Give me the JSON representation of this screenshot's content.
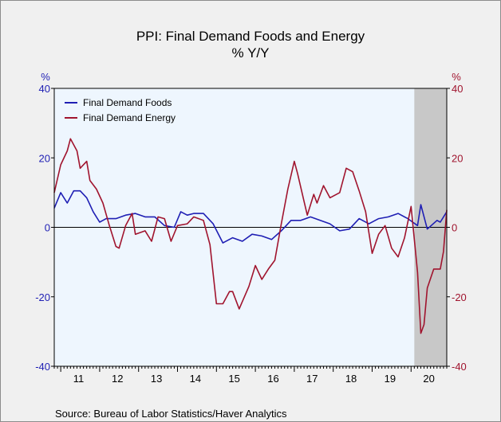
{
  "chart_data": {
    "type": "line",
    "title": "PPI: Final Demand Foods and Energy",
    "subtitle": "% Y/Y",
    "left_unit": "%",
    "right_unit": "%",
    "ylim": [
      -40,
      40
    ],
    "yticks": [
      "40",
      "20",
      "0",
      "-20",
      "-40"
    ],
    "x_range": [
      "2010-11",
      "2020-12"
    ],
    "x_tick_labels": [
      "11",
      "12",
      "13",
      "14",
      "15",
      "16",
      "17",
      "18",
      "19",
      "20"
    ],
    "recession_shading": [
      "2020-02",
      "2020-12"
    ],
    "grid": false,
    "legend_position": "top-left",
    "source": "Source:  Bureau of Labor Statistics/Haver Analytics",
    "colors": {
      "plot_bg": "#eef6fe",
      "recession": "#c8c8c8",
      "foods": "#1f1fb4",
      "energy": "#a0142e"
    },
    "series": [
      {
        "name": "Final Demand Foods",
        "color": "#1f1fb4",
        "points": [
          [
            "2010-11",
            5.5
          ],
          [
            "2011-01",
            10.0
          ],
          [
            "2011-03",
            7.0
          ],
          [
            "2011-05",
            10.5
          ],
          [
            "2011-07",
            10.5
          ],
          [
            "2011-09",
            8.5
          ],
          [
            "2011-11",
            4.5
          ],
          [
            "2012-01",
            1.5
          ],
          [
            "2012-03",
            2.5
          ],
          [
            "2012-06",
            2.5
          ],
          [
            "2012-09",
            3.5
          ],
          [
            "2012-12",
            4.0
          ],
          [
            "2013-03",
            3.0
          ],
          [
            "2013-06",
            3.0
          ],
          [
            "2013-09",
            0.5
          ],
          [
            "2013-12",
            0.0
          ],
          [
            "2014-02",
            4.5
          ],
          [
            "2014-04",
            3.5
          ],
          [
            "2014-06",
            4.0
          ],
          [
            "2014-09",
            4.0
          ],
          [
            "2014-12",
            1.0
          ],
          [
            "2015-03",
            -4.5
          ],
          [
            "2015-06",
            -3.0
          ],
          [
            "2015-09",
            -4.0
          ],
          [
            "2015-12",
            -2.0
          ],
          [
            "2016-03",
            -2.5
          ],
          [
            "2016-06",
            -3.5
          ],
          [
            "2016-09",
            -1.0
          ],
          [
            "2016-12",
            2.0
          ],
          [
            "2017-03",
            2.0
          ],
          [
            "2017-06",
            3.0
          ],
          [
            "2017-09",
            2.0
          ],
          [
            "2017-12",
            1.0
          ],
          [
            "2018-03",
            -1.0
          ],
          [
            "2018-06",
            -0.5
          ],
          [
            "2018-09",
            2.5
          ],
          [
            "2018-12",
            1.0
          ],
          [
            "2019-03",
            2.5
          ],
          [
            "2019-06",
            3.0
          ],
          [
            "2019-09",
            4.0
          ],
          [
            "2019-12",
            2.5
          ],
          [
            "2020-03",
            0.5
          ],
          [
            "2020-04",
            6.5
          ],
          [
            "2020-06",
            -0.5
          ],
          [
            "2020-09",
            2.0
          ],
          [
            "2020-10",
            1.5
          ],
          [
            "2020-12",
            4.5
          ]
        ]
      },
      {
        "name": "Final Demand Energy",
        "color": "#a0142e",
        "points": [
          [
            "2010-11",
            10.0
          ],
          [
            "2011-01",
            18.0
          ],
          [
            "2011-03",
            22.0
          ],
          [
            "2011-04",
            25.5
          ],
          [
            "2011-06",
            22.0
          ],
          [
            "2011-07",
            17.0
          ],
          [
            "2011-09",
            19.0
          ],
          [
            "2011-10",
            13.5
          ],
          [
            "2011-12",
            11.0
          ],
          [
            "2012-02",
            7.0
          ],
          [
            "2012-04",
            0.5
          ],
          [
            "2012-06",
            -5.5
          ],
          [
            "2012-07",
            -6.0
          ],
          [
            "2012-09",
            0.5
          ],
          [
            "2012-11",
            4.0
          ],
          [
            "2012-12",
            -2.0
          ],
          [
            "2013-03",
            -1.0
          ],
          [
            "2013-05",
            -4.0
          ],
          [
            "2013-07",
            3.0
          ],
          [
            "2013-09",
            2.5
          ],
          [
            "2013-11",
            -4.0
          ],
          [
            "2014-01",
            0.5
          ],
          [
            "2014-04",
            1.0
          ],
          [
            "2014-06",
            3.0
          ],
          [
            "2014-09",
            2.0
          ],
          [
            "2014-11",
            -5.0
          ],
          [
            "2015-01",
            -22.0
          ],
          [
            "2015-03",
            -22.0
          ],
          [
            "2015-05",
            -18.5
          ],
          [
            "2015-06",
            -18.5
          ],
          [
            "2015-08",
            -23.5
          ],
          [
            "2015-11",
            -17.0
          ],
          [
            "2016-01",
            -11.0
          ],
          [
            "2016-03",
            -15.0
          ],
          [
            "2016-05",
            -12.0
          ],
          [
            "2016-07",
            -9.5
          ],
          [
            "2016-09",
            1.0
          ],
          [
            "2016-11",
            11.0
          ],
          [
            "2017-01",
            19.0
          ],
          [
            "2017-02",
            15.5
          ],
          [
            "2017-04",
            7.5
          ],
          [
            "2017-05",
            3.5
          ],
          [
            "2017-07",
            9.5
          ],
          [
            "2017-08",
            7.0
          ],
          [
            "2017-10",
            12.0
          ],
          [
            "2017-12",
            8.5
          ],
          [
            "2018-03",
            10.0
          ],
          [
            "2018-05",
            17.0
          ],
          [
            "2018-07",
            16.0
          ],
          [
            "2018-09",
            10.5
          ],
          [
            "2018-11",
            4.5
          ],
          [
            "2019-01",
            -7.5
          ],
          [
            "2019-03",
            -2.0
          ],
          [
            "2019-05",
            0.5
          ],
          [
            "2019-07",
            -6.0
          ],
          [
            "2019-09",
            -8.5
          ],
          [
            "2019-11",
            -3.0
          ],
          [
            "2020-01",
            6.0
          ],
          [
            "2020-03",
            -13.0
          ],
          [
            "2020-04",
            -30.5
          ],
          [
            "2020-05",
            -28.0
          ],
          [
            "2020-06",
            -17.5
          ],
          [
            "2020-08",
            -12.0
          ],
          [
            "2020-10",
            -12.0
          ],
          [
            "2020-11",
            -7.0
          ],
          [
            "2020-12",
            5.0
          ]
        ]
      }
    ]
  }
}
